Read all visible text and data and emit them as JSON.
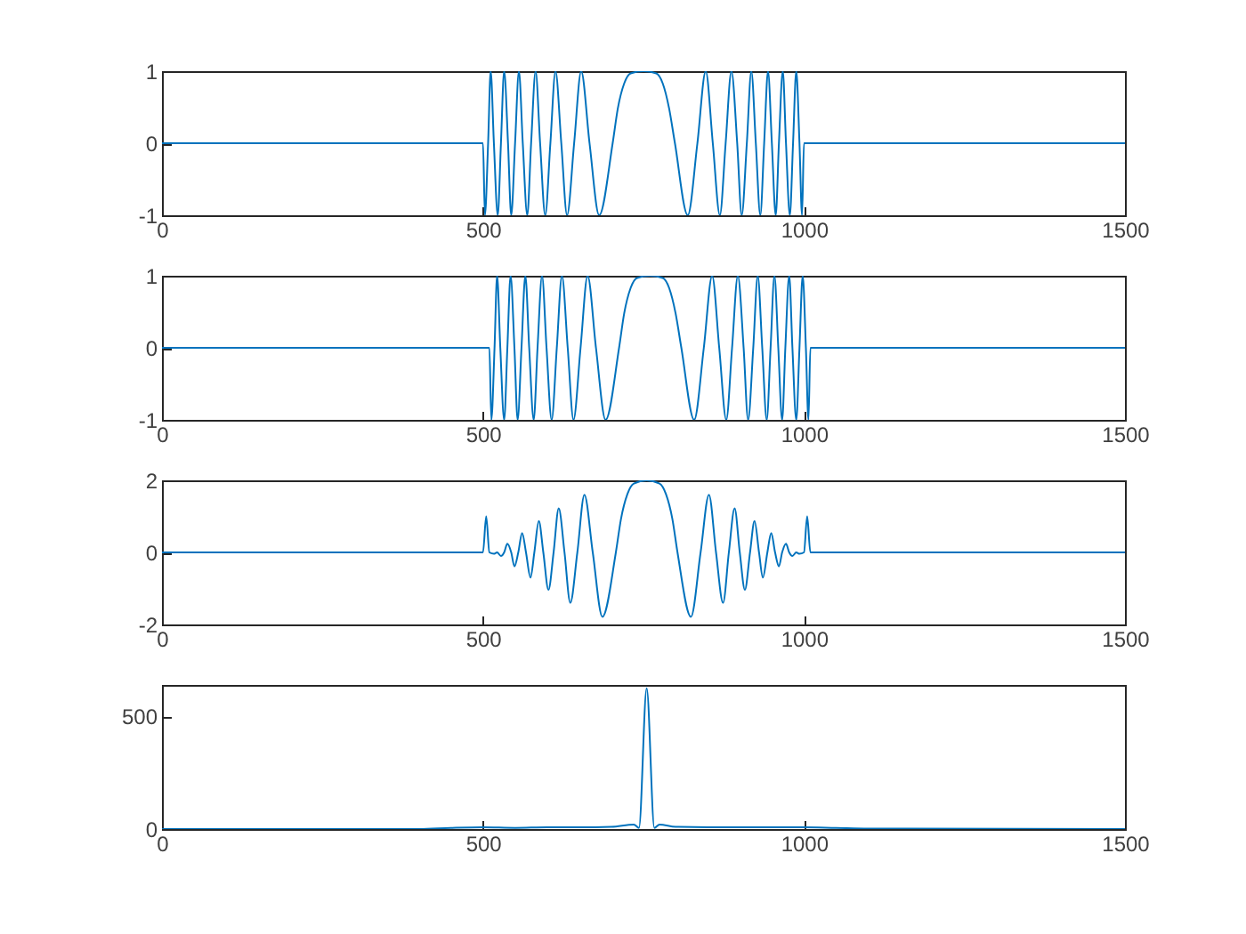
{
  "chart_data": [
    {
      "type": "line",
      "color": "#0072bd",
      "xlim": [
        0,
        1500
      ],
      "xticks": [
        0,
        500,
        1000,
        1500
      ],
      "ylim": [
        -1,
        1
      ],
      "yticks": [
        -1,
        0,
        1
      ],
      "grid": false,
      "x": [
        0,
        500,
        503,
        508,
        512,
        517,
        523,
        528,
        533,
        539,
        544,
        550,
        556,
        562,
        569,
        575,
        582,
        589,
        597,
        605,
        613,
        622,
        631,
        642,
        653,
        666,
        681,
        702,
        710,
        720,
        730,
        750,
        770,
        780,
        790,
        799,
        819,
        834,
        847,
        858,
        869,
        878,
        887,
        896,
        903,
        911,
        918,
        925,
        932,
        938,
        944,
        950,
        956,
        961,
        967,
        972,
        978,
        983,
        988,
        993,
        997,
        1000,
        1500
      ],
      "values": [
        0,
        0,
        -1,
        0,
        1,
        0,
        -1,
        0,
        1,
        0,
        -1,
        0,
        1,
        0,
        -1,
        0,
        1,
        0,
        -1,
        0,
        1,
        0,
        -1,
        0,
        1,
        0,
        -1,
        0,
        0.48,
        0.83,
        0.97,
        1,
        0.97,
        0.83,
        0.48,
        0,
        -1,
        0,
        1,
        0,
        -1,
        0,
        1,
        0,
        -1,
        0,
        1,
        0,
        -1,
        0,
        1,
        0,
        -1,
        0,
        1,
        0,
        -1,
        0,
        1,
        0,
        -1,
        0,
        0
      ]
    },
    {
      "type": "line",
      "color": "#0072bd",
      "xlim": [
        0,
        1500
      ],
      "xticks": [
        0,
        500,
        1000,
        1500
      ],
      "ylim": [
        -1,
        1
      ],
      "yticks": [
        -1,
        0,
        1
      ],
      "grid": false,
      "x": [
        0,
        510,
        513,
        518,
        522,
        527,
        533,
        538,
        543,
        549,
        554,
        560,
        566,
        572,
        579,
        585,
        592,
        599,
        607,
        615,
        623,
        632,
        641,
        652,
        663,
        676,
        691,
        712,
        720,
        730,
        740,
        760,
        780,
        790,
        800,
        809,
        829,
        844,
        857,
        868,
        879,
        888,
        897,
        906,
        913,
        921,
        928,
        935,
        942,
        948,
        954,
        960,
        966,
        971,
        977,
        982,
        988,
        993,
        998,
        1003,
        1007,
        1010,
        1500
      ],
      "values": [
        0,
        0,
        -1,
        0,
        1,
        0,
        -1,
        0,
        1,
        0,
        -1,
        0,
        1,
        0,
        -1,
        0,
        1,
        0,
        -1,
        0,
        1,
        0,
        -1,
        0,
        1,
        0,
        -1,
        0,
        0.48,
        0.83,
        0.97,
        1,
        0.97,
        0.83,
        0.48,
        0,
        -1,
        0,
        1,
        0,
        -1,
        0,
        1,
        0,
        -1,
        0,
        1,
        0,
        -1,
        0,
        1,
        0,
        -1,
        0,
        1,
        0,
        -1,
        0,
        1,
        0,
        -1,
        0,
        0
      ]
    },
    {
      "type": "line",
      "color": "#0072bd",
      "xlim": [
        0,
        1500
      ],
      "xticks": [
        0,
        500,
        1000,
        1500
      ],
      "ylim": [
        -2,
        2
      ],
      "yticks": [
        -2,
        0,
        2
      ],
      "grid": false,
      "x": [
        0,
        500,
        505,
        510,
        517,
        522,
        528,
        533,
        538,
        544,
        549,
        555,
        561,
        567,
        574,
        580,
        587,
        594,
        602,
        610,
        618,
        627,
        636,
        647,
        658,
        671,
        686,
        707,
        715,
        725,
        735,
        755,
        775,
        785,
        795,
        803,
        824,
        839,
        852,
        863,
        874,
        883,
        892,
        900,
        908,
        916,
        923,
        930,
        936,
        943,
        949,
        955,
        961,
        966,
        972,
        977,
        982,
        988,
        993,
        1000,
        1005,
        1010,
        1500
      ],
      "values": [
        0,
        0,
        1,
        0,
        -0.04,
        0,
        -0.1,
        0,
        0.24,
        0,
        -0.39,
        0,
        0.54,
        0,
        -0.7,
        0,
        0.87,
        0,
        -1.04,
        0,
        1.22,
        0,
        -1.4,
        0,
        1.6,
        0,
        -1.79,
        0,
        0.93,
        1.62,
        1.91,
        2,
        1.91,
        1.62,
        0.93,
        0,
        -1.79,
        0,
        1.6,
        0,
        -1.4,
        0,
        1.22,
        0,
        -1.04,
        0,
        0.87,
        0,
        -0.7,
        0,
        0.54,
        0,
        -0.39,
        0,
        0.24,
        0,
        -0.1,
        0,
        -0.04,
        0,
        1,
        0,
        0
      ]
    },
    {
      "type": "line",
      "color": "#0072bd",
      "xlim": [
        0,
        1500
      ],
      "xticks": [
        0,
        500,
        1000,
        1500
      ],
      "ylim": [
        0,
        640
      ],
      "yticks": [
        0,
        500
      ],
      "grid": false,
      "x": [
        0,
        400,
        450,
        500,
        550,
        600,
        650,
        700,
        735,
        743,
        755,
        767,
        775,
        800,
        850,
        900,
        950,
        1000,
        1050,
        1100,
        1500
      ],
      "values": [
        0,
        0,
        5,
        8,
        5,
        8,
        8,
        10,
        20,
        5,
        625,
        5,
        20,
        10,
        8,
        8,
        8,
        8,
        5,
        2,
        0
      ]
    }
  ]
}
